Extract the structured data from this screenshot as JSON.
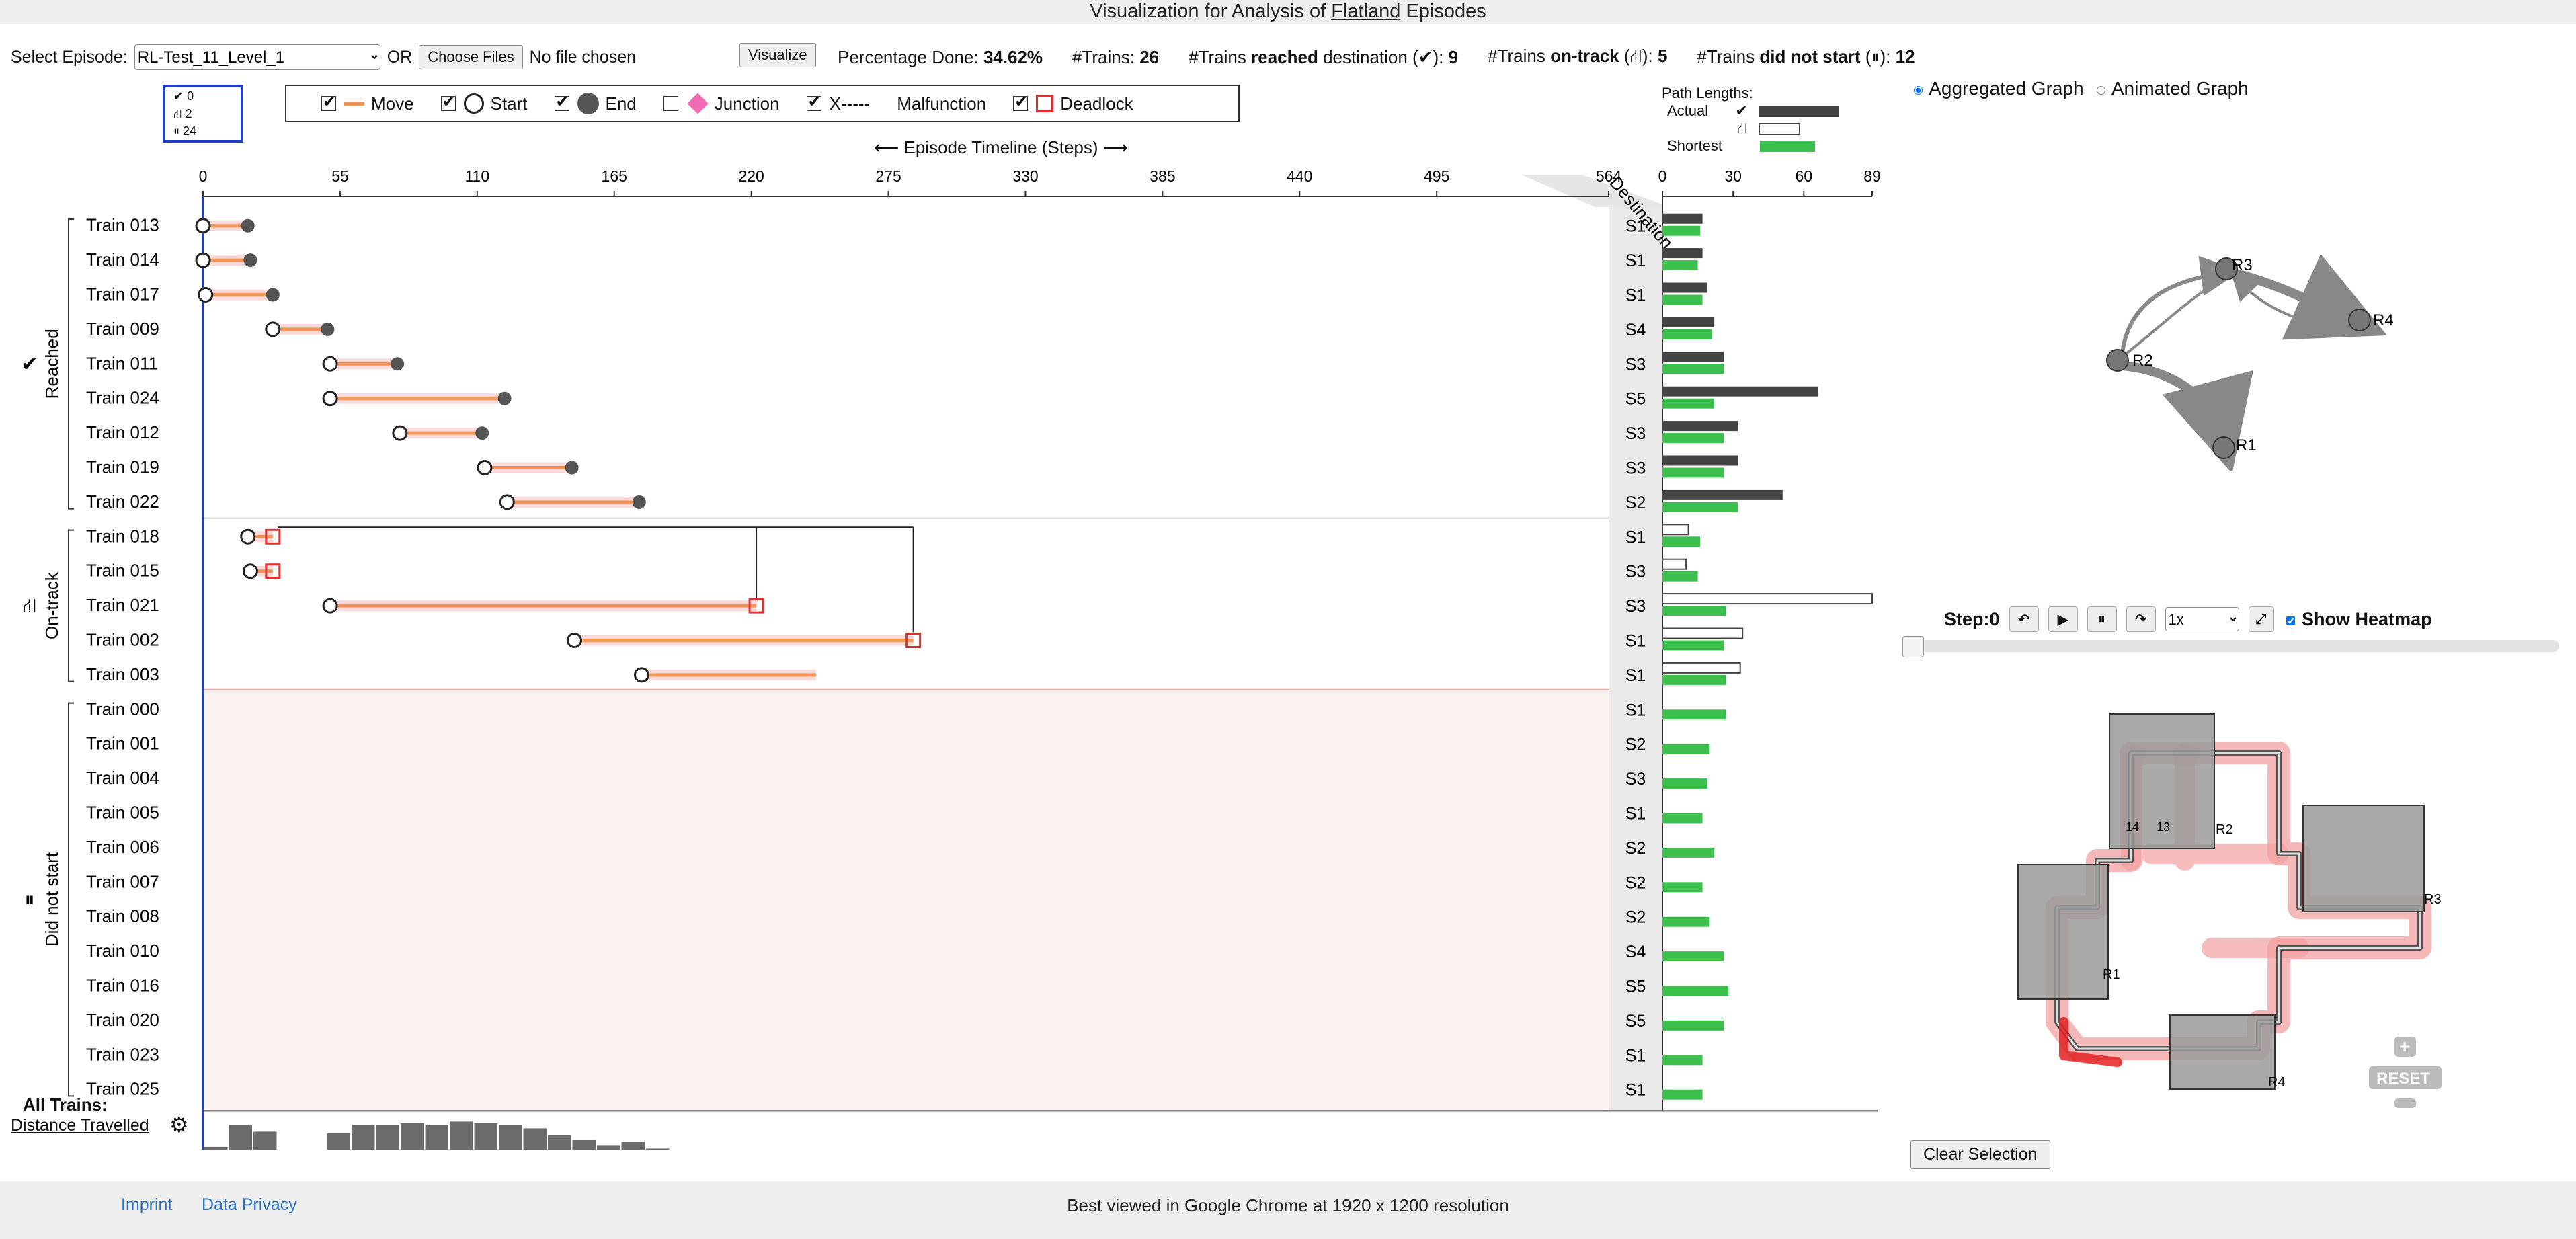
{
  "header": {
    "title_prefix": "Visualization for Analysis of ",
    "title_link": "Flatland",
    "title_suffix": " Episodes"
  },
  "controls": {
    "select_label": "Select Episode:",
    "episode_value": "RL-Test_11_Level_1",
    "or_label": "OR",
    "choose_files_label": "Choose Files",
    "no_file_label": "No file chosen",
    "visualize_label": "Visualize"
  },
  "stats": {
    "percentage_label": "Percentage Done:",
    "percentage_value": "34.62%",
    "trains_label": "#Trains:",
    "trains_value": "26",
    "reached_pre": "#Trains",
    "reached_bold": "reached",
    "reached_post": "destination (✔):",
    "reached_value": "9",
    "ontrack_pre": "#Trains",
    "ontrack_bold": "on-track",
    "ontrack_post": "(⛙):",
    "ontrack_value": "5",
    "notstart_pre": "#Trains",
    "notstart_bold": "did not start",
    "notstart_post": "(⏸):",
    "notstart_value": "12"
  },
  "mini_legend": {
    "reached": "0",
    "ontrack": "2",
    "notstart": "24"
  },
  "legend": {
    "move": "Move",
    "start": "Start",
    "end": "End",
    "junction": "Junction",
    "xline": "X-----",
    "malfunction": "Malfunction",
    "deadlock": "Deadlock",
    "colors": {
      "move": "#f0965a",
      "end": "#555555",
      "junction": "#f06ab4",
      "deadlock": "#e03030"
    }
  },
  "timeline": {
    "label": "Episode Timeline (Steps)",
    "ticks": [
      0,
      55,
      110,
      165,
      220,
      275,
      330,
      385,
      440,
      495,
      564
    ],
    "max_step": 564,
    "destination_label": "Destination"
  },
  "path_lengths": {
    "label": "Path Lengths:",
    "actual": "Actual",
    "shortest": "Shortest",
    "ticks": [
      0,
      30,
      60,
      89
    ],
    "max": 89
  },
  "groups": [
    {
      "name": "Reached",
      "icon": "✔"
    },
    {
      "name": "On-track",
      "icon": "⛙"
    },
    {
      "name": "Did not start",
      "icon": "⏸"
    }
  ],
  "trains": [
    {
      "name": "Train 013",
      "group": 0,
      "start": 0,
      "end": 18,
      "dest": "S1",
      "actual": 17,
      "shortest": 16
    },
    {
      "name": "Train 014",
      "group": 0,
      "start": 0,
      "end": 19,
      "dest": "S1",
      "actual": 17,
      "shortest": 15
    },
    {
      "name": "Train 017",
      "group": 0,
      "start": 1,
      "end": 28,
      "dest": "S1",
      "actual": 19,
      "shortest": 17
    },
    {
      "name": "Train 009",
      "group": 0,
      "start": 28,
      "end": 50,
      "dest": "S4",
      "actual": 22,
      "shortest": 21
    },
    {
      "name": "Train 011",
      "group": 0,
      "start": 51,
      "end": 78,
      "dest": "S3",
      "actual": 26,
      "shortest": 26
    },
    {
      "name": "Train 024",
      "group": 0,
      "start": 51,
      "end": 121,
      "dest": "S5",
      "actual": 66,
      "shortest": 22
    },
    {
      "name": "Train 012",
      "group": 0,
      "start": 79,
      "end": 112,
      "dest": "S3",
      "actual": 32,
      "shortest": 26
    },
    {
      "name": "Train 019",
      "group": 0,
      "start": 113,
      "end": 148,
      "dest": "S3",
      "actual": 32,
      "shortest": 26
    },
    {
      "name": "Train 022",
      "group": 0,
      "start": 122,
      "end": 175,
      "dest": "S2",
      "actual": 51,
      "shortest": 32
    },
    {
      "name": "Train 018",
      "group": 1,
      "start": 18,
      "deadlock": 28,
      "dest": "S1",
      "actual": 11,
      "shortest": 16
    },
    {
      "name": "Train 015",
      "group": 1,
      "start": 19,
      "deadlock": 28,
      "dest": "S3",
      "actual": 10,
      "shortest": 15
    },
    {
      "name": "Train 021",
      "group": 1,
      "start": 51,
      "deadlock": 222,
      "dest": "S3",
      "actual": 89,
      "shortest": 27
    },
    {
      "name": "Train 002",
      "group": 1,
      "start": 149,
      "deadlock": 285,
      "dest": "S1",
      "actual": 34,
      "shortest": 26
    },
    {
      "name": "Train 003",
      "group": 1,
      "start": 176,
      "dest": "S1",
      "actual": 33,
      "shortest": 27
    },
    {
      "name": "Train 000",
      "group": 2,
      "dest": "S1",
      "shortest": 27
    },
    {
      "name": "Train 001",
      "group": 2,
      "dest": "S2",
      "shortest": 20
    },
    {
      "name": "Train 004",
      "group": 2,
      "dest": "S3",
      "shortest": 19
    },
    {
      "name": "Train 005",
      "group": 2,
      "dest": "S1",
      "shortest": 17
    },
    {
      "name": "Train 006",
      "group": 2,
      "dest": "S2",
      "shortest": 22
    },
    {
      "name": "Train 007",
      "group": 2,
      "dest": "S2",
      "shortest": 17
    },
    {
      "name": "Train 008",
      "group": 2,
      "dest": "S2",
      "shortest": 20
    },
    {
      "name": "Train 010",
      "group": 2,
      "dest": "S4",
      "shortest": 26
    },
    {
      "name": "Train 016",
      "group": 2,
      "dest": "S5",
      "shortest": 28
    },
    {
      "name": "Train 020",
      "group": 2,
      "dest": "S5",
      "shortest": 26
    },
    {
      "name": "Train 023",
      "group": 2,
      "dest": "S1",
      "shortest": 17
    },
    {
      "name": "Train 025",
      "group": 2,
      "dest": "S1",
      "shortest": 17
    }
  ],
  "distance": {
    "title": "All Trains:",
    "label": "Distance Travelled",
    "bars": [
      13,
      26,
      22,
      8,
      11,
      21,
      26,
      26,
      27,
      26,
      28,
      27,
      26,
      24,
      20,
      17,
      14,
      16,
      12,
      9,
      6,
      2,
      0,
      0,
      0,
      0,
      0,
      0,
      1
    ]
  },
  "graph": {
    "aggregated_label": "Aggregated Graph",
    "animated_label": "Animated Graph",
    "nodes": [
      "R1",
      "R2",
      "R3",
      "R4"
    ]
  },
  "player": {
    "step_label": "Step:0",
    "speed": "1x",
    "heatmap_label": "Show Heatmap"
  },
  "map": {
    "regions": [
      "R1",
      "R2",
      "R3",
      "R4"
    ],
    "train_ids": [
      "14",
      "13"
    ],
    "reset_label": "RESET"
  },
  "clear_selection_label": "Clear Selection",
  "footer": {
    "imprint": "Imprint",
    "privacy": "Data Privacy",
    "note": "Best viewed in Google Chrome at 1920 x 1200 resolution"
  }
}
